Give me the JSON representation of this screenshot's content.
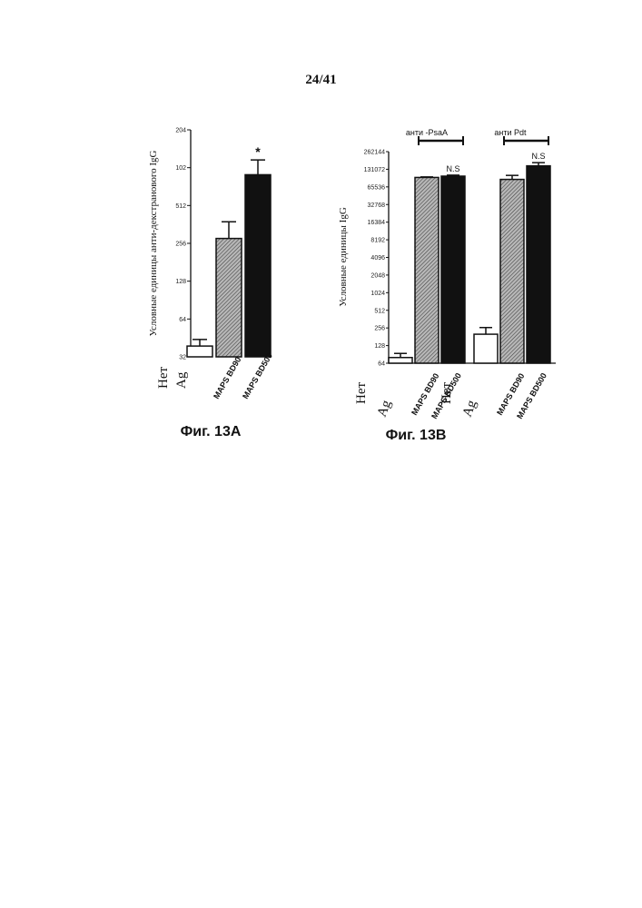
{
  "page_number": "24/41",
  "chart_data": [
    {
      "type": "bar",
      "caption": "Фиг. 13A",
      "ylabel": "Условные единицы анти-декстранового IgG",
      "yscale": "log2",
      "ylim": [
        32,
        2048
      ],
      "yticks": [
        "32",
        "64",
        "128",
        "256",
        "512",
        "1024",
        "2048"
      ],
      "ytick_labels": [
        "32",
        "64",
        "128",
        "256",
        "512",
        "102",
        "204"
      ],
      "categories": [
        "Нет Ag",
        "MAPS BD90",
        "MAPS BD500"
      ],
      "category_labels": [
        {
          "line1": "Нет",
          "line2": "Ag"
        },
        {
          "line1": "MAPS BD90"
        },
        {
          "line1": "MAPS BD500"
        }
      ],
      "values": [
        39,
        280,
        900
      ],
      "errors": [
        5,
        100,
        280
      ],
      "fills": [
        "white",
        "hatched",
        "black"
      ],
      "annotations": [
        {
          "category": 2,
          "text": "*"
        }
      ]
    },
    {
      "type": "bar",
      "caption": "Фиг. 13B",
      "ylabel": "Условные единицы IgG",
      "yscale": "log2",
      "ylim": [
        64,
        262144
      ],
      "yticks": [
        "64",
        "128",
        "256",
        "512",
        "1024",
        "2048",
        "4096",
        "8192",
        "16384",
        "32768",
        "65536",
        "131072",
        "262144"
      ],
      "groups": [
        {
          "label": "анти -PsaA",
          "categories": [
            "Нет Ag",
            "MAPS BD90",
            "MAPS BD500"
          ],
          "category_labels": [
            {
              "line1": "Нет",
              "line2": "Ag"
            },
            {
              "line1": "MAPS BD90"
            },
            {
              "line1": "MAPS BD500"
            }
          ],
          "values": [
            80,
            95000,
            100000
          ],
          "errors": [
            14,
            2000,
            4000
          ],
          "fills": [
            "white",
            "hatched",
            "black"
          ],
          "annotation": "N.S"
        },
        {
          "label": "анти Pdt",
          "categories": [
            "Нет Ag",
            "MAPS BD90",
            "MAPS BD500"
          ],
          "category_labels": [
            {
              "line1": "Нет",
              "line2": "Ag"
            },
            {
              "line1": "MAPS BD90"
            },
            {
              "line1": "MAPS BD500"
            }
          ],
          "values": [
            200,
            88000,
            150000
          ],
          "errors": [
            60,
            15000,
            20000
          ],
          "fills": [
            "white",
            "hatched",
            "black"
          ],
          "annotation": "N.S"
        }
      ]
    }
  ]
}
